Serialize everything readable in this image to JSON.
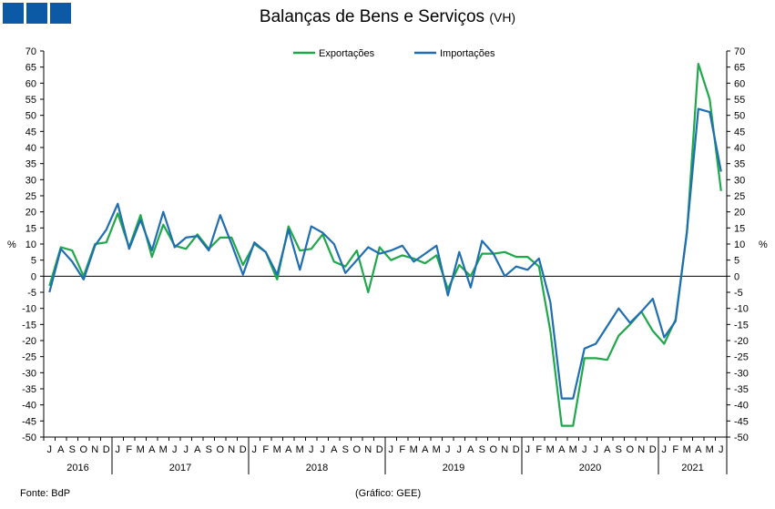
{
  "logo": {
    "color": "#0c5aa6",
    "squares": 3
  },
  "title": {
    "main": "Balanças de Bens e Serviços",
    "sub": "(VH)"
  },
  "footer": {
    "source": "Fonte: BdP",
    "note": "(Gráfico: GEE)"
  },
  "chart_data": {
    "type": "line",
    "title": "Balanças de Bens e Serviços",
    "subtitle": "(VH)",
    "ylabel_left": "%",
    "ylabel_right": "%",
    "ylim": [
      -50,
      70
    ],
    "ytick_step": 5,
    "grid": false,
    "legend_position": "top-center",
    "x": [
      "J",
      "A",
      "S",
      "O",
      "N",
      "D",
      "J",
      "F",
      "M",
      "A",
      "M",
      "J",
      "J",
      "A",
      "S",
      "O",
      "N",
      "D",
      "J",
      "F",
      "M",
      "A",
      "M",
      "J",
      "J",
      "A",
      "S",
      "O",
      "N",
      "D",
      "J",
      "F",
      "M",
      "A",
      "M",
      "J",
      "J",
      "A",
      "S",
      "O",
      "N",
      "D",
      "J",
      "F",
      "M",
      "A",
      "M",
      "J",
      "J",
      "A",
      "S",
      "O",
      "N",
      "D",
      "J",
      "F",
      "M",
      "A",
      "M",
      "J"
    ],
    "years": [
      {
        "label": "2016",
        "start": 0,
        "count": 6
      },
      {
        "label": "2017",
        "start": 6,
        "count": 12
      },
      {
        "label": "2018",
        "start": 18,
        "count": 12
      },
      {
        "label": "2019",
        "start": 30,
        "count": 12
      },
      {
        "label": "2020",
        "start": 42,
        "count": 12
      },
      {
        "label": "2021",
        "start": 54,
        "count": 6
      }
    ],
    "series": [
      {
        "name": "Exportações",
        "color": "#1fa84a",
        "values": [
          -3,
          9,
          8,
          0,
          10,
          10.5,
          19.5,
          9,
          19,
          6,
          16,
          9.5,
          8.5,
          13,
          8.5,
          12,
          12,
          3.5,
          10,
          7.5,
          -1,
          15.5,
          8,
          8.5,
          13,
          4.5,
          3,
          8,
          -5,
          9,
          5,
          6.5,
          5.5,
          4,
          6.5,
          -4,
          3.5,
          0,
          7,
          7,
          7.5,
          6,
          6,
          3,
          -17,
          -46.5,
          -46.5,
          -25.5,
          -25.5,
          -26,
          -18.5,
          -15,
          -11,
          -17,
          -21,
          -13.5,
          13.5,
          66,
          55,
          26.5
        ]
      },
      {
        "name": "Importações",
        "color": "#1f6db3",
        "values": [
          -5,
          8.5,
          4.5,
          -1,
          9.5,
          14.5,
          22.5,
          8.5,
          17.5,
          8,
          20,
          9,
          12,
          12.5,
          8,
          19,
          10,
          0.5,
          10.5,
          7.5,
          0.5,
          14.5,
          2,
          15.5,
          13.5,
          10,
          1,
          5,
          9,
          7,
          8,
          9.5,
          4.5,
          7,
          9.5,
          -6,
          7.5,
          -3.5,
          11,
          7,
          0,
          3,
          2,
          5.5,
          -8,
          -38,
          -38,
          -22.5,
          -21,
          -15.5,
          -10,
          -14.5,
          -11,
          -7,
          -19,
          -14,
          14,
          52,
          51,
          32.5
        ]
      }
    ]
  }
}
